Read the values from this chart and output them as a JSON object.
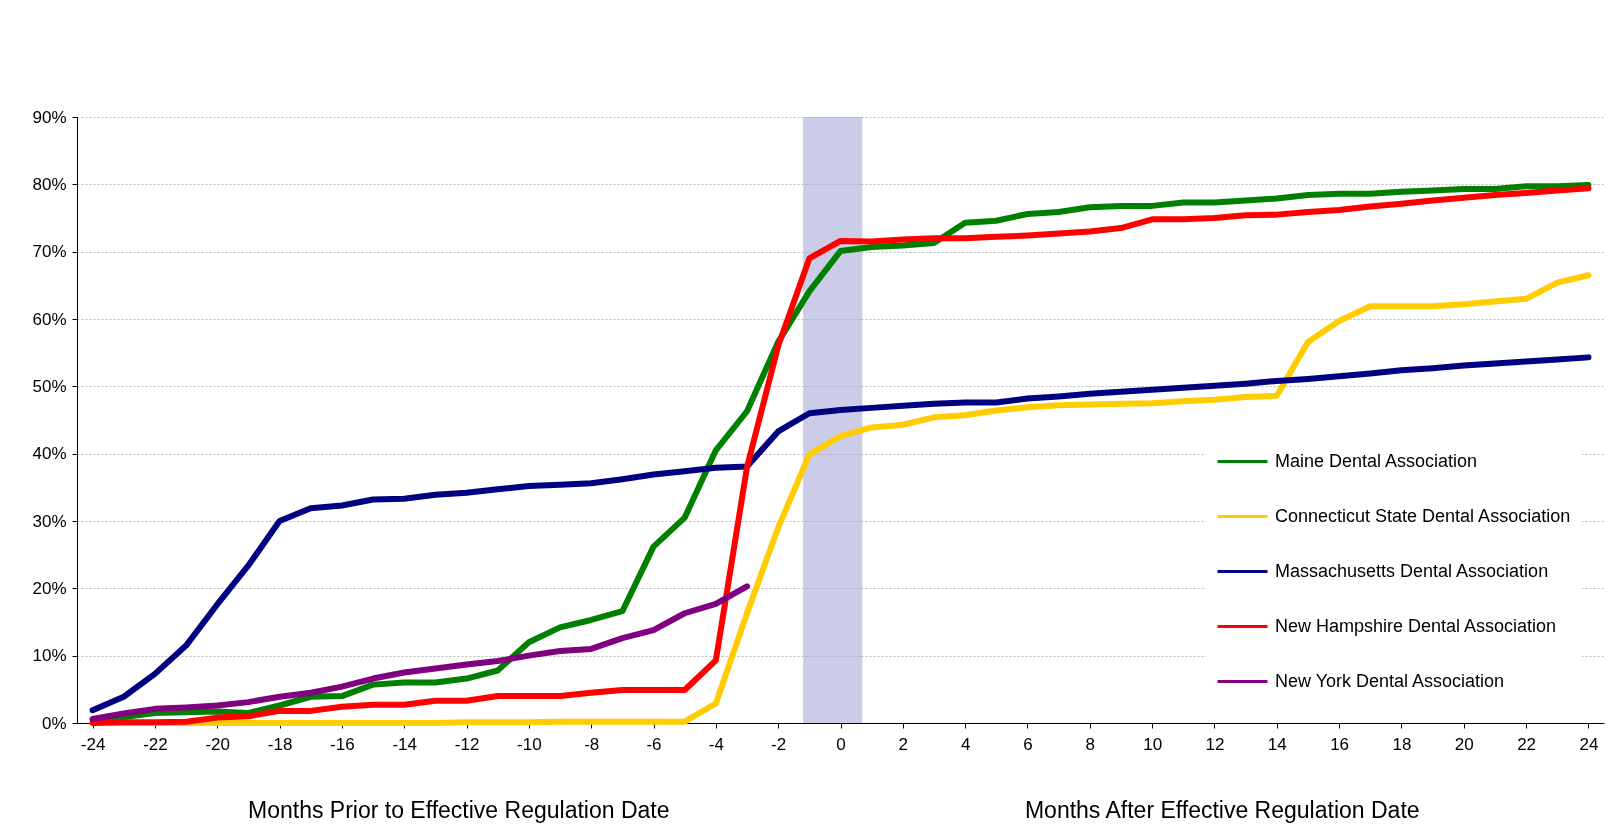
{
  "chart_data": {
    "type": "line",
    "x": [
      -24,
      -23,
      -22,
      -21,
      -20,
      -19,
      -18,
      -17,
      -16,
      -15,
      -14,
      -13,
      -12,
      -11,
      -10,
      -9,
      -8,
      -7,
      -6,
      -5,
      -4,
      -3,
      -2,
      -1,
      0,
      1,
      2,
      3,
      4,
      5,
      6,
      7,
      8,
      9,
      10,
      11,
      12,
      13,
      14,
      15,
      16,
      17,
      18,
      19,
      20,
      21,
      22,
      23,
      24
    ],
    "series": [
      {
        "name": "Maine Dental Association",
        "color": "#008000",
        "values": [
          0.5,
          0.9,
          1.5,
          1.6,
          1.7,
          1.5,
          2.6,
          3.9,
          4.0,
          5.7,
          6.0,
          6.0,
          6.6,
          7.8,
          12.0,
          14.2,
          15.3,
          16.6,
          26.2,
          30.5,
          40.5,
          46.3,
          56.6,
          64.1,
          70.1,
          70.7,
          70.9,
          71.3,
          74.3,
          74.6,
          75.6,
          75.9,
          76.6,
          76.8,
          76.8,
          77.3,
          77.3,
          77.6,
          77.9,
          78.4,
          78.6,
          78.6,
          78.9,
          79.1,
          79.3,
          79.3,
          79.7,
          79.7,
          79.9
        ]
      },
      {
        "name": "Connecticut State Dental Association",
        "color": "#ffcc00",
        "values": [
          0,
          0,
          0,
          0,
          0,
          0,
          0,
          0,
          0,
          0,
          0,
          0,
          0.1,
          0.1,
          0.1,
          0.2,
          0.2,
          0.2,
          0.2,
          0.2,
          2.9,
          16.3,
          29.0,
          39.9,
          42.6,
          43.9,
          44.3,
          45.4,
          45.7,
          46.4,
          46.9,
          47.2,
          47.3,
          47.4,
          47.5,
          47.8,
          48.0,
          48.4,
          48.6,
          56.6,
          59.7,
          61.9,
          61.9,
          61.9,
          62.2,
          62.6,
          63.0,
          65.4,
          66.5
        ]
      },
      {
        "name": "Massachusetts Dental Association",
        "color": "#000080",
        "values": [
          1.9,
          3.9,
          7.3,
          11.5,
          17.6,
          23.4,
          30.0,
          31.9,
          32.3,
          33.2,
          33.3,
          33.9,
          34.2,
          34.7,
          35.2,
          35.4,
          35.6,
          36.2,
          36.9,
          37.4,
          37.9,
          38.1,
          43.3,
          46.0,
          46.5,
          46.8,
          47.1,
          47.4,
          47.6,
          47.6,
          48.2,
          48.5,
          48.9,
          49.2,
          49.5,
          49.8,
          50.1,
          50.4,
          50.8,
          51.1,
          51.5,
          51.9,
          52.4,
          52.7,
          53.1,
          53.4,
          53.7,
          54.0,
          54.3
        ]
      },
      {
        "name": "New Hampshire Dental Association",
        "color": "#ff0000",
        "values": [
          0,
          0.1,
          0.1,
          0.2,
          0.8,
          1.0,
          1.8,
          1.8,
          2.4,
          2.7,
          2.7,
          3.3,
          3.3,
          4.0,
          4.0,
          4.0,
          4.5,
          4.9,
          4.9,
          4.9,
          9.3,
          38.0,
          56.0,
          69.0,
          71.6,
          71.5,
          71.8,
          72.0,
          72.0,
          72.2,
          72.4,
          72.7,
          73.0,
          73.5,
          74.8,
          74.8,
          75.0,
          75.4,
          75.5,
          75.9,
          76.2,
          76.7,
          77.1,
          77.6,
          78.0,
          78.4,
          78.7,
          79.1,
          79.4
        ]
      },
      {
        "name": "New York Dental Association",
        "color": "#800080",
        "values": [
          0.6,
          1.4,
          2.1,
          2.3,
          2.6,
          3.1,
          3.9,
          4.5,
          5.4,
          6.6,
          7.5,
          8.1,
          8.7,
          9.2,
          10.0,
          10.7,
          11.0,
          12.6,
          13.8,
          16.3,
          17.7,
          20.3,
          null,
          null,
          null,
          null,
          null,
          null,
          null,
          null,
          null,
          null,
          null,
          null,
          null,
          null,
          null,
          null,
          null,
          null,
          null,
          null,
          null,
          null,
          null,
          null,
          null,
          null,
          null
        ]
      }
    ],
    "xlim": [
      -24.5,
      24.5
    ],
    "xticks": [
      -24,
      -22,
      -20,
      -18,
      -16,
      -14,
      -12,
      -10,
      -8,
      -6,
      -4,
      -2,
      0,
      2,
      4,
      6,
      8,
      10,
      12,
      14,
      16,
      18,
      20,
      22,
      24
    ],
    "ylim": [
      0,
      90
    ],
    "yticks": [
      {
        "value": 0,
        "label": "0%"
      },
      {
        "value": 10,
        "label": "10%"
      },
      {
        "value": 20,
        "label": "20%"
      },
      {
        "value": 30,
        "label": "30%"
      },
      {
        "value": 40,
        "label": "40%"
      },
      {
        "value": 50,
        "label": "50%"
      },
      {
        "value": 60,
        "label": "60%"
      },
      {
        "value": 70,
        "label": "70%"
      },
      {
        "value": 80,
        "label": "80%"
      },
      {
        "value": 90,
        "label": "90%"
      }
    ],
    "grid": "y",
    "legend": "bottom right",
    "marker": "none",
    "line_style": "solid",
    "bands": [
      {
        "axis": "x",
        "from": -1.2,
        "to": 0.7,
        "color": "#9fa3d6"
      }
    ],
    "annotations": [
      "Months Prior to Effective Regulation Date",
      "Months After Effective Regulation Date"
    ]
  }
}
